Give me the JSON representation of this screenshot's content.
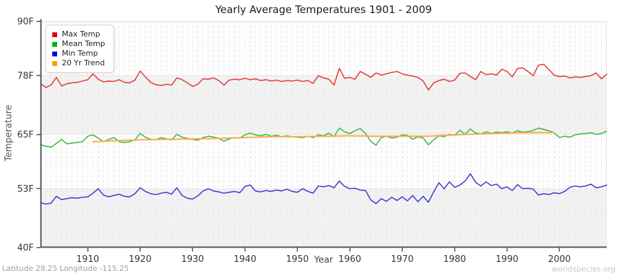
{
  "header": {
    "title": "Yearly Average Temperatures 1901 - 2009"
  },
  "axes": {
    "y_title": "Temperature",
    "x_title": "Year"
  },
  "footer": {
    "left": "Latitude 28.25 Longitude -115.25",
    "right": "worldspecies.org"
  },
  "legend": {
    "items": [
      {
        "label": "Max Temp",
        "color": "#e60000"
      },
      {
        "label": "Mean Temp",
        "color": "#00b400"
      },
      {
        "label": "Min Temp",
        "color": "#0000e1"
      },
      {
        "label": "20 Yr Trend",
        "color": "#ff9c00"
      }
    ]
  },
  "colors": {
    "axis": "#555555",
    "frame": "#dddddd",
    "tick_text": "#333333",
    "band_fill": "#f2f2f2",
    "plot_bg": "#fdfdfd",
    "h_grid": "#e8e8e8",
    "v_grid_dashed": "#e4e4e4"
  },
  "chart_data": {
    "type": "line",
    "title": "Yearly Average Temperatures 1901 - 2009",
    "xlabel": "Year",
    "ylabel": "Temperature",
    "x_start": 1901,
    "x_end": 2009,
    "ylim": [
      40,
      90
    ],
    "yticks": [
      40,
      53,
      65,
      78,
      90
    ],
    "ytick_labels": [
      "40F",
      "53F",
      "65F",
      "78F",
      "90F"
    ],
    "xticks": [
      1910,
      1920,
      1930,
      1940,
      1950,
      1960,
      1970,
      1980,
      1990,
      2000
    ],
    "grid": {
      "vertical_dashed_every_year": true,
      "gray_bands_between": [
        [
          78,
          65
        ],
        [
          53,
          40
        ]
      ]
    },
    "legend_position": "top-left",
    "series": [
      {
        "name": "Max Temp",
        "color": "#e53e3e",
        "width": 1.6,
        "x_start": 1901,
        "values": [
          76.2,
          75.4,
          75.9,
          77.6,
          75.7,
          76.2,
          76.4,
          76.5,
          76.8,
          77.1,
          78.4,
          77.2,
          76.6,
          76.8,
          76.7,
          77.1,
          76.5,
          76.4,
          77.0,
          79.0,
          77.7,
          76.5,
          76.0,
          75.8,
          76.1,
          75.9,
          77.5,
          77.1,
          76.4,
          75.6,
          76.1,
          77.3,
          77.2,
          77.5,
          76.9,
          75.9,
          77.0,
          77.2,
          77.1,
          77.4,
          77.1,
          77.3,
          76.9,
          77.1,
          76.8,
          77.0,
          76.7,
          76.9,
          76.8,
          77.0,
          76.7,
          76.9,
          76.3,
          78.0,
          77.5,
          77.2,
          75.9,
          79.6,
          77.4,
          77.6,
          77.2,
          78.9,
          78.3,
          77.6,
          78.6,
          78.1,
          78.4,
          78.7,
          78.9,
          78.4,
          78.1,
          77.9,
          77.6,
          76.8,
          74.8,
          76.4,
          76.9,
          77.2,
          76.7,
          77.0,
          78.5,
          78.6,
          77.8,
          77.1,
          78.9,
          78.2,
          78.4,
          78.1,
          79.4,
          78.9,
          77.7,
          79.6,
          79.7,
          78.9,
          78.0,
          80.3,
          80.5,
          79.3,
          78.1,
          77.8,
          77.9,
          77.5,
          77.7,
          77.6,
          77.8,
          78.0,
          78.6,
          77.3,
          78.3
        ]
      },
      {
        "name": "Mean Temp",
        "color": "#41b941",
        "width": 1.6,
        "x_start": 1901,
        "values": [
          62.7,
          62.4,
          62.2,
          63.0,
          63.9,
          62.9,
          63.1,
          63.2,
          63.4,
          64.6,
          64.9,
          64.2,
          63.4,
          63.9,
          64.3,
          63.4,
          63.2,
          63.4,
          63.8,
          65.2,
          64.4,
          63.9,
          63.8,
          64.3,
          64.0,
          63.8,
          65.0,
          64.4,
          64.1,
          63.9,
          63.7,
          64.3,
          64.6,
          64.4,
          64.1,
          63.5,
          64.0,
          64.3,
          64.2,
          64.9,
          65.3,
          64.9,
          64.7,
          65.0,
          64.6,
          64.8,
          64.5,
          64.7,
          64.5,
          64.4,
          64.3,
          64.6,
          64.3,
          64.9,
          64.7,
          65.3,
          64.5,
          66.4,
          65.6,
          65.2,
          65.8,
          66.3,
          65.2,
          63.5,
          62.6,
          64.3,
          64.6,
          64.2,
          64.4,
          64.9,
          64.8,
          63.9,
          64.5,
          64.2,
          62.7,
          63.8,
          64.7,
          64.5,
          65.0,
          64.8,
          65.9,
          65.0,
          66.2,
          65.3,
          65.1,
          65.6,
          65.2,
          65.5,
          65.4,
          65.6,
          65.3,
          65.8,
          65.5,
          65.6,
          65.9,
          66.4,
          66.1,
          65.8,
          65.4,
          64.3,
          64.6,
          64.4,
          64.9,
          65.1,
          65.2,
          65.4,
          65.0,
          65.2,
          65.7
        ]
      },
      {
        "name": "Min Temp",
        "color": "#4040d0",
        "width": 1.6,
        "x_start": 1901,
        "values": [
          49.9,
          49.6,
          49.8,
          51.3,
          50.6,
          50.8,
          51.0,
          50.9,
          51.1,
          51.2,
          52.0,
          53.0,
          51.6,
          51.2,
          51.5,
          51.8,
          51.3,
          51.2,
          51.9,
          53.2,
          52.4,
          51.9,
          51.7,
          52.0,
          52.2,
          51.8,
          53.2,
          51.5,
          50.9,
          50.7,
          51.4,
          52.5,
          53.0,
          52.5,
          52.3,
          52.0,
          52.2,
          52.4,
          52.1,
          53.5,
          53.8,
          52.5,
          52.3,
          52.6,
          52.4,
          52.7,
          52.5,
          52.9,
          52.4,
          52.2,
          53.0,
          52.4,
          52.0,
          53.6,
          53.4,
          53.7,
          53.2,
          54.7,
          53.5,
          53.0,
          53.1,
          52.7,
          52.6,
          50.5,
          49.7,
          50.8,
          50.2,
          51.1,
          50.4,
          51.2,
          50.3,
          51.5,
          50.1,
          51.3,
          50.0,
          52.3,
          54.3,
          53.0,
          54.5,
          53.3,
          53.8,
          54.7,
          56.3,
          54.4,
          53.6,
          54.5,
          53.7,
          54.0,
          53.0,
          53.4,
          52.6,
          53.9,
          53.0,
          53.1,
          52.9,
          51.6,
          51.9,
          51.7,
          52.1,
          51.9,
          52.4,
          53.3,
          53.6,
          53.4,
          53.6,
          54.0,
          53.2,
          53.4,
          53.8
        ]
      },
      {
        "name": "20 Yr Trend",
        "color": "#ffaa45",
        "width": 2.0,
        "x_start": 1911,
        "values": [
          63.4,
          63.45,
          63.5,
          63.55,
          63.6,
          63.64,
          63.68,
          63.72,
          63.76,
          63.8,
          63.82,
          63.84,
          63.86,
          63.88,
          63.9,
          63.92,
          63.94,
          63.96,
          63.98,
          64.0,
          64.02,
          64.04,
          64.06,
          64.08,
          64.1,
          64.14,
          64.18,
          64.22,
          64.26,
          64.3,
          64.34,
          64.38,
          64.42,
          64.46,
          64.5,
          64.5,
          64.5,
          64.5,
          64.5,
          64.5,
          64.52,
          64.54,
          64.56,
          64.58,
          64.6,
          64.62,
          64.64,
          64.66,
          64.68,
          64.7,
          64.68,
          64.66,
          64.64,
          64.62,
          64.6,
          64.6,
          64.6,
          64.6,
          64.6,
          64.6,
          64.6,
          64.6,
          64.6,
          64.6,
          64.6,
          64.66,
          64.72,
          64.78,
          64.84,
          64.9,
          64.94,
          64.98,
          65.02,
          65.06,
          65.1,
          65.14,
          65.18,
          65.22,
          65.26,
          65.3,
          65.32,
          65.34,
          65.36,
          65.38,
          65.4,
          65.4,
          65.4,
          65.4,
          65.4
        ]
      }
    ]
  }
}
